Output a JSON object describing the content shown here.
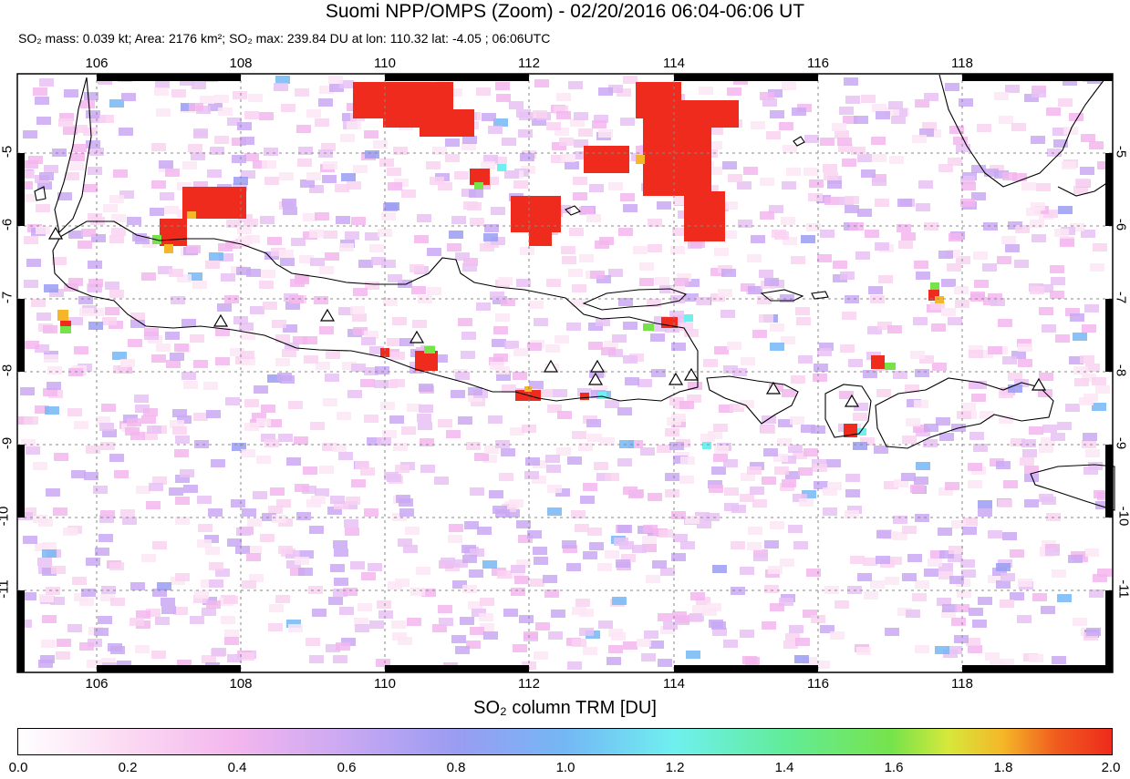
{
  "title": "Suomi NPP/OMPS (Zoom) - 02/20/2016 06:04-06:06 UT",
  "subtitle": {
    "mass": "SO₂ mass: 0.039 kt; Area: 2176 km²; SO₂ max: 239.84 DU at lon: 110.32 lat: -4.05 ; 06:06UTC"
  },
  "map": {
    "lon_ticks": [
      "106",
      "108",
      "110",
      "112",
      "114",
      "116",
      "118"
    ],
    "lat_ticks": [
      "-5",
      "-6",
      "-7",
      "-8",
      "-9",
      "-10",
      "-11"
    ],
    "volcano_icon": "triangle-outline-icon"
  },
  "colorbar": {
    "title": "SO₂ column TRM [DU]",
    "ticks": [
      "0.0",
      "0.2",
      "0.4",
      "0.6",
      "0.8",
      "1.0",
      "1.2",
      "1.4",
      "1.6",
      "1.8",
      "2.0"
    ],
    "colors": [
      "#ffffff",
      "#f3b6ee",
      "#9a9cf2",
      "#6ff0ef",
      "#77e34a",
      "#f5b728",
      "#ee2b1c"
    ]
  }
}
